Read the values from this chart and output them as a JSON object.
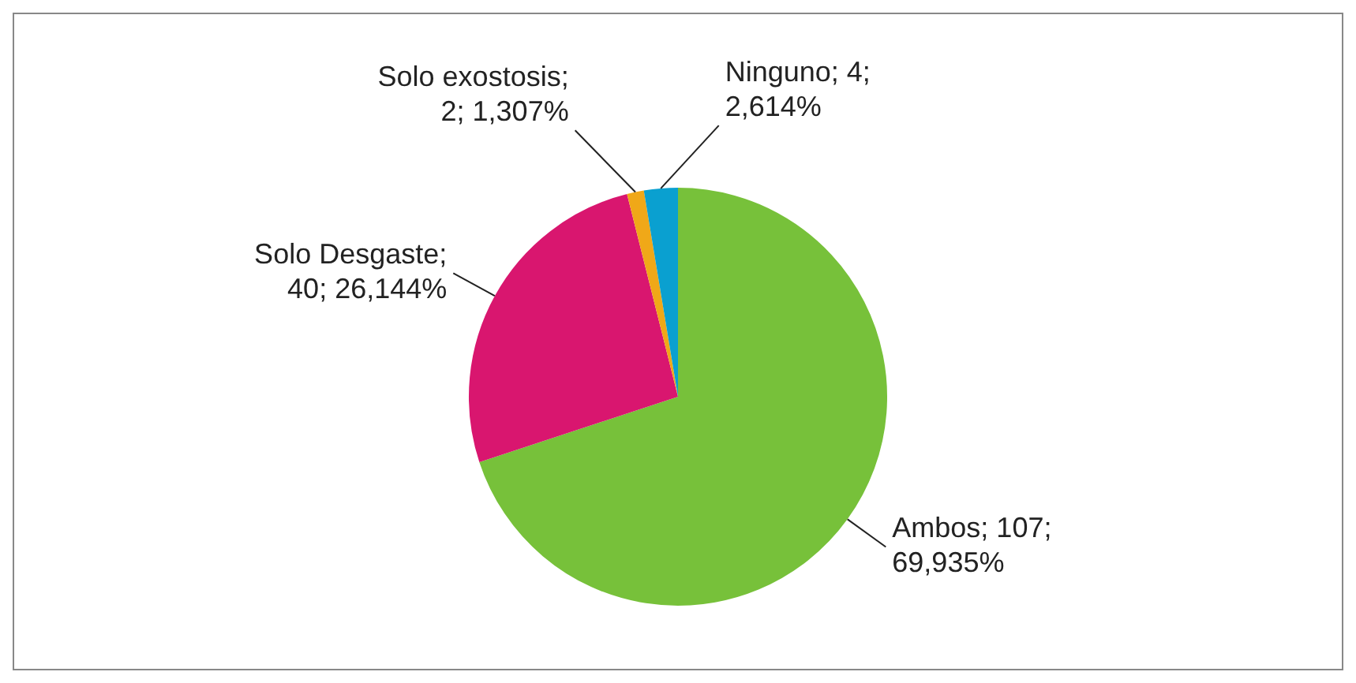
{
  "chart_data": {
    "type": "pie",
    "categories": [
      "Ambos",
      "Solo Desgaste",
      "Solo exostosis",
      "Ninguno"
    ],
    "values": [
      107,
      40,
      2,
      4
    ],
    "colors": [
      "#77c13a",
      "#d9166f",
      "#f0a818",
      "#0aa0d0"
    ],
    "value_labels": [
      "; 107; 69,935%",
      "; 40; 26,144%",
      "; 2; 1,307%",
      "; 4; 2,614%"
    ],
    "legend": false
  }
}
